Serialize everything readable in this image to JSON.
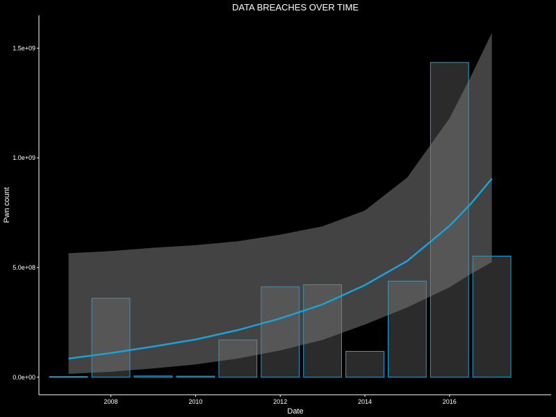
{
  "chart_data": {
    "type": "bar",
    "title": "DATA BREACHES OVER TIME",
    "xlabel": "Date",
    "ylabel": "Pwn count",
    "x_ticks": [
      "2008",
      "2010",
      "2012",
      "2014",
      "2016"
    ],
    "y_ticks": [
      "0.0e+00",
      "5.0e+08",
      "1.0e+09",
      "1.5e+09"
    ],
    "xlim": [
      2006.3,
      2018.4
    ],
    "ylim": [
      -80000000,
      1650000000
    ],
    "grid": false,
    "colors": {
      "background": "#000000",
      "axis": "#ffffff",
      "bar_fill": "#2b2b2b",
      "bar_stroke": "#1aa3d9",
      "trend_line": "#1aa3d9",
      "confidence_band": "#7a7a7a"
    },
    "bars": [
      {
        "year": 2007,
        "value": 3000000
      },
      {
        "year": 2008,
        "value": 360000000
      },
      {
        "year": 2009,
        "value": 6000000
      },
      {
        "year": 2010,
        "value": 5000000
      },
      {
        "year": 2011,
        "value": 170000000
      },
      {
        "year": 2012,
        "value": 412000000
      },
      {
        "year": 2013,
        "value": 422000000
      },
      {
        "year": 2014,
        "value": 118000000
      },
      {
        "year": 2015,
        "value": 438000000
      },
      {
        "year": 2016,
        "value": 1435000000
      },
      {
        "year": 2017,
        "value": 552000000
      }
    ],
    "trend": [
      {
        "x": 2007.0,
        "y": 85000000,
        "lo": 15000000,
        "hi": 565000000
      },
      {
        "x": 2008.0,
        "y": 110000000,
        "lo": 25000000,
        "hi": 575000000
      },
      {
        "x": 2009.0,
        "y": 140000000,
        "lo": 40000000,
        "hi": 590000000
      },
      {
        "x": 2010.0,
        "y": 172000000,
        "lo": 58000000,
        "hi": 602000000
      },
      {
        "x": 2011.0,
        "y": 215000000,
        "lo": 85000000,
        "hi": 620000000
      },
      {
        "x": 2012.0,
        "y": 268000000,
        "lo": 122000000,
        "hi": 650000000
      },
      {
        "x": 2013.0,
        "y": 332000000,
        "lo": 170000000,
        "hi": 688000000
      },
      {
        "x": 2014.0,
        "y": 420000000,
        "lo": 240000000,
        "hi": 760000000
      },
      {
        "x": 2015.0,
        "y": 530000000,
        "lo": 318000000,
        "hi": 910000000
      },
      {
        "x": 2016.0,
        "y": 690000000,
        "lo": 410000000,
        "hi": 1180000000
      },
      {
        "x": 2016.5,
        "y": 790000000,
        "lo": 470000000,
        "hi": 1370000000
      },
      {
        "x": 2017.0,
        "y": 905000000,
        "lo": 525000000,
        "hi": 1570000000
      }
    ]
  }
}
